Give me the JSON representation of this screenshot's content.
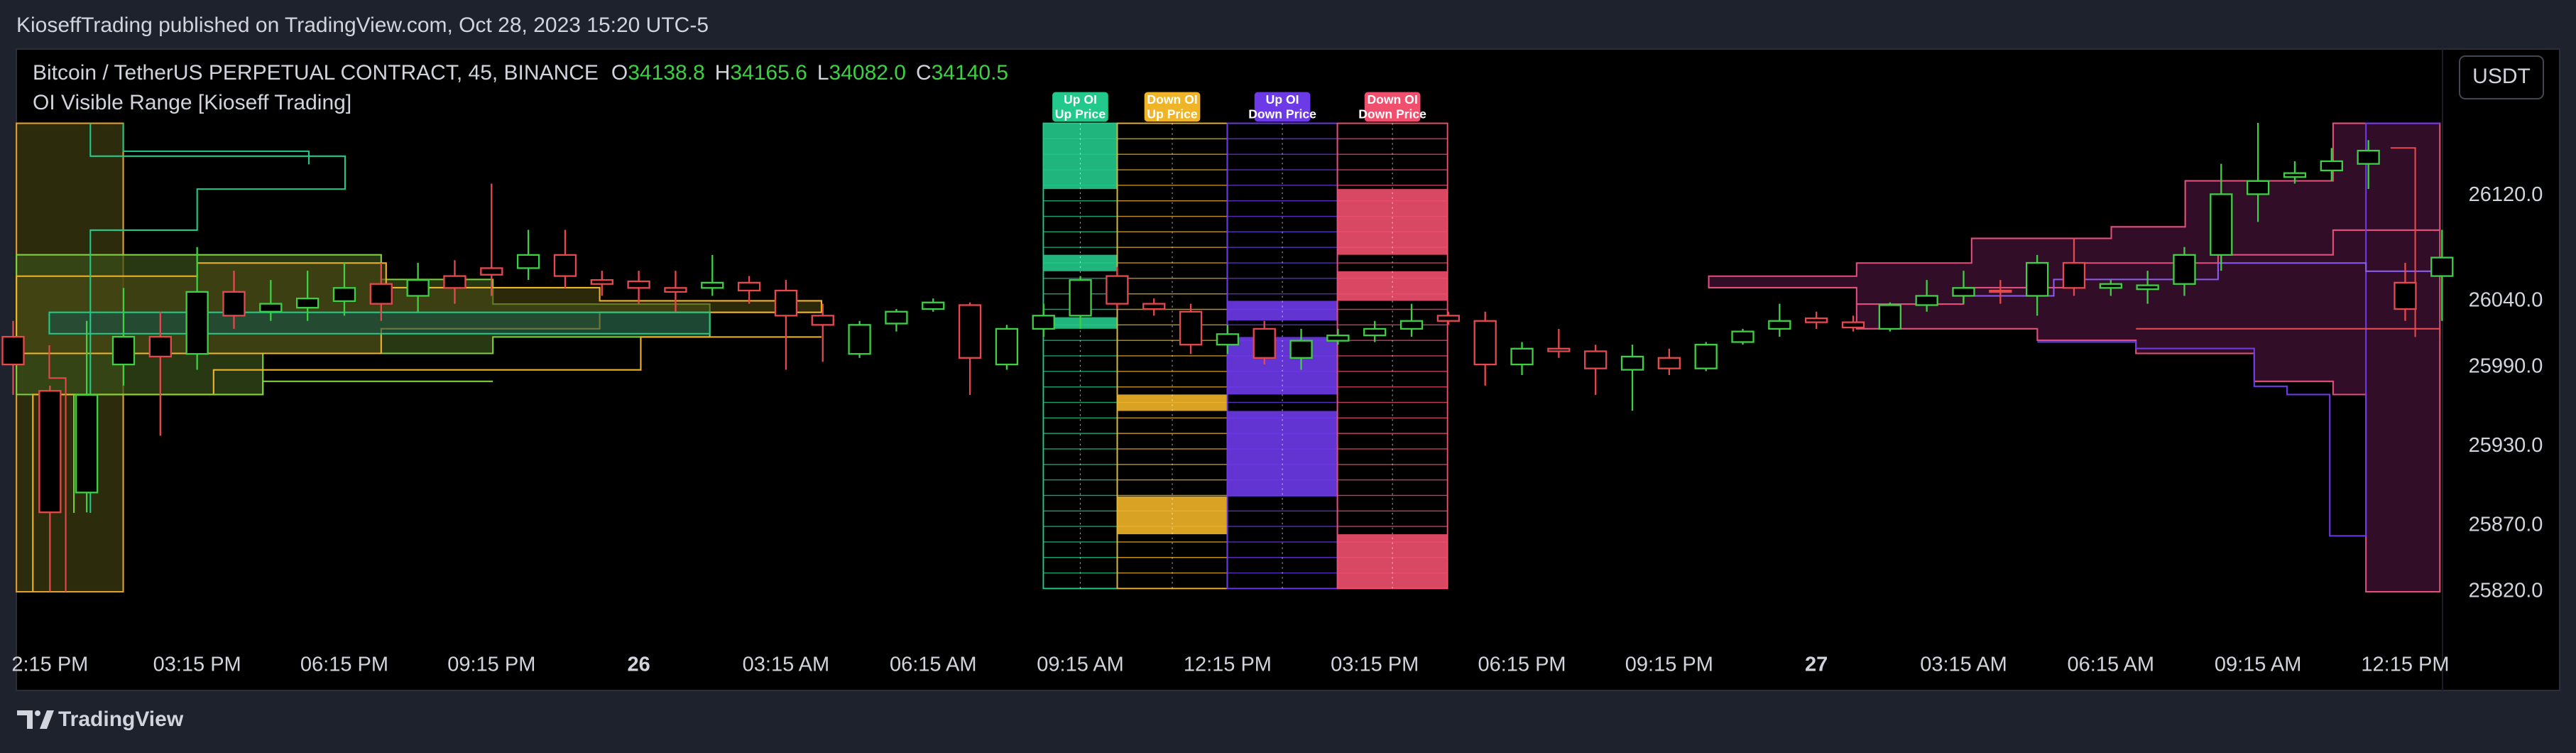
{
  "header": {
    "text": "KioseffTrading published on TradingView.com, Oct 28, 2023 15:20 UTC-5"
  },
  "legend": {
    "symbol": "Bitcoin / TetherUS PERPETUAL CONTRACT, 45, BINANCE",
    "ohlc": [
      [
        "O",
        "34138.8"
      ],
      [
        "H",
        "34165.6"
      ],
      [
        "L",
        "34082.0"
      ],
      [
        "C",
        "34140.5"
      ]
    ],
    "indicator": "OI Visible Range [Kioseff Trading]"
  },
  "currency_button": "USDT",
  "oi_columns": [
    {
      "line1": "Up OI",
      "line2": "Up Price",
      "color": "#22c98a"
    },
    {
      "line1": "Down OI",
      "line2": "Up Price",
      "color": "#f0b429"
    },
    {
      "line1": "Up OI",
      "line2": "Down Price",
      "color": "#6d3ae8"
    },
    {
      "line1": "Down OI",
      "line2": "Down Price",
      "color": "#f0506e"
    }
  ],
  "footer": {
    "brand": "TradingView"
  },
  "chart_data": {
    "type": "candlestick",
    "up_color": "#3fcf45",
    "down_color": "#e5484d",
    "categories": [
      null,
      "2:15 PM",
      null,
      null,
      null,
      "03:15 PM",
      null,
      null,
      null,
      "06:15 PM",
      null,
      null,
      null,
      "09:15 PM",
      null,
      null,
      null,
      "26",
      null,
      null,
      null,
      "03:15 AM",
      null,
      null,
      null,
      "06:15 AM",
      null,
      null,
      null,
      "09:15 AM",
      null,
      null,
      null,
      "12:15 PM",
      null,
      null,
      null,
      "03:15 PM",
      null,
      null,
      null,
      "06:15 PM",
      null,
      null,
      null,
      "09:15 PM",
      null,
      null,
      null,
      "27",
      null,
      null,
      null,
      "03:15 AM",
      null,
      null,
      null,
      "06:15 AM",
      null,
      null,
      null,
      "09:15 AM",
      null,
      null,
      null,
      "12:15 PM",
      null
    ],
    "open": [
      26013,
      25972,
      25895,
      25992,
      26013,
      26000,
      26047,
      26032,
      26035,
      26040,
      26053,
      26044,
      26059,
      26065,
      26065,
      26075,
      26056,
      26055,
      26050,
      26050,
      26054,
      26048,
      26029,
      26000,
      26023,
      26034,
      26037,
      25992,
      26019,
      26029,
      26059,
      26038,
      26032,
      26007,
      26019,
      25997,
      26010,
      26014,
      26019,
      26029,
      26025,
      25992,
      26004,
      26002,
      25988,
      25997,
      25989,
      26009,
      26019,
      26027,
      26024,
      26019,
      26037,
      26044,
      26048,
      26044,
      26069,
      26050,
      26049,
      26053,
      26075,
      26121,
      26134,
      26139,
      26144,
      26054,
      26059
    ],
    "high": [
      26025,
      25976,
      26025,
      26050,
      26032,
      26081,
      26063,
      26056,
      26063,
      26069,
      26069,
      26069,
      26071,
      26129,
      26094,
      26094,
      26063,
      26063,
      26063,
      26075,
      26059,
      26056,
      26038,
      26025,
      26034,
      26042,
      26039,
      26022,
      26038,
      26059,
      26066,
      26042,
      26038,
      26022,
      26025,
      26019,
      26019,
      26025,
      26038,
      26032,
      26032,
      26009,
      26019,
      26007,
      26007,
      26004,
      26009,
      26019,
      26038,
      26032,
      26029,
      26039,
      26056,
      26063,
      26056,
      26075,
      26088,
      26056,
      26063,
      26081,
      26144,
      26175,
      26146,
      26156,
      26162,
      26069,
      26094
    ],
    "low": [
      25969,
      25820,
      25880,
      25976,
      25938,
      25988,
      26019,
      26025,
      26025,
      26029,
      26025,
      26032,
      26038,
      26044,
      26056,
      26050,
      26044,
      26038,
      26032,
      26044,
      26038,
      25988,
      25994,
      25997,
      26017,
      26032,
      25969,
      25988,
      26013,
      26019,
      26034,
      26029,
      26000,
      26000,
      25992,
      25988,
      26007,
      26009,
      26013,
      26022,
      25976,
      25984,
      25997,
      25969,
      25957,
      25984,
      25987,
      26007,
      26013,
      26019,
      26017,
      26017,
      26032,
      26038,
      26038,
      26029,
      26044,
      26044,
      26038,
      26044,
      26063,
      26100,
      26129,
      26131,
      26125,
      26025,
      26025
    ],
    "close": [
      25992,
      25880,
      25969,
      26013,
      25998,
      26047,
      26029,
      26038,
      26042,
      26050,
      26038,
      26056,
      26050,
      26060,
      26075,
      26059,
      26053,
      26050,
      26047,
      26054,
      26048,
      26029,
      26022,
      26022,
      26032,
      26039,
      25997,
      26019,
      26029,
      26056,
      26038,
      26034,
      26007,
      26015,
      25997,
      26010,
      26014,
      26019,
      26025,
      26025,
      25992,
      26004,
      26002,
      25989,
      25998,
      25989,
      26007,
      26017,
      26025,
      26024,
      26020,
      26037,
      26044,
      26050,
      26047,
      26069,
      26050,
      26053,
      26052,
      26075,
      26121,
      26131,
      26137,
      26146,
      26154,
      26034,
      26073
    ],
    "ylim": [
      25780,
      26231
    ],
    "yticks": [
      {
        "value": 26120,
        "label": "26120.0"
      },
      {
        "value": 26040,
        "label": "26040.0"
      },
      {
        "value": 25990,
        "label": "25990.0"
      },
      {
        "value": 25930,
        "label": "25930.0"
      },
      {
        "value": 25870,
        "label": "25870.0"
      },
      {
        "value": 25820,
        "label": "25820.0"
      }
    ]
  }
}
